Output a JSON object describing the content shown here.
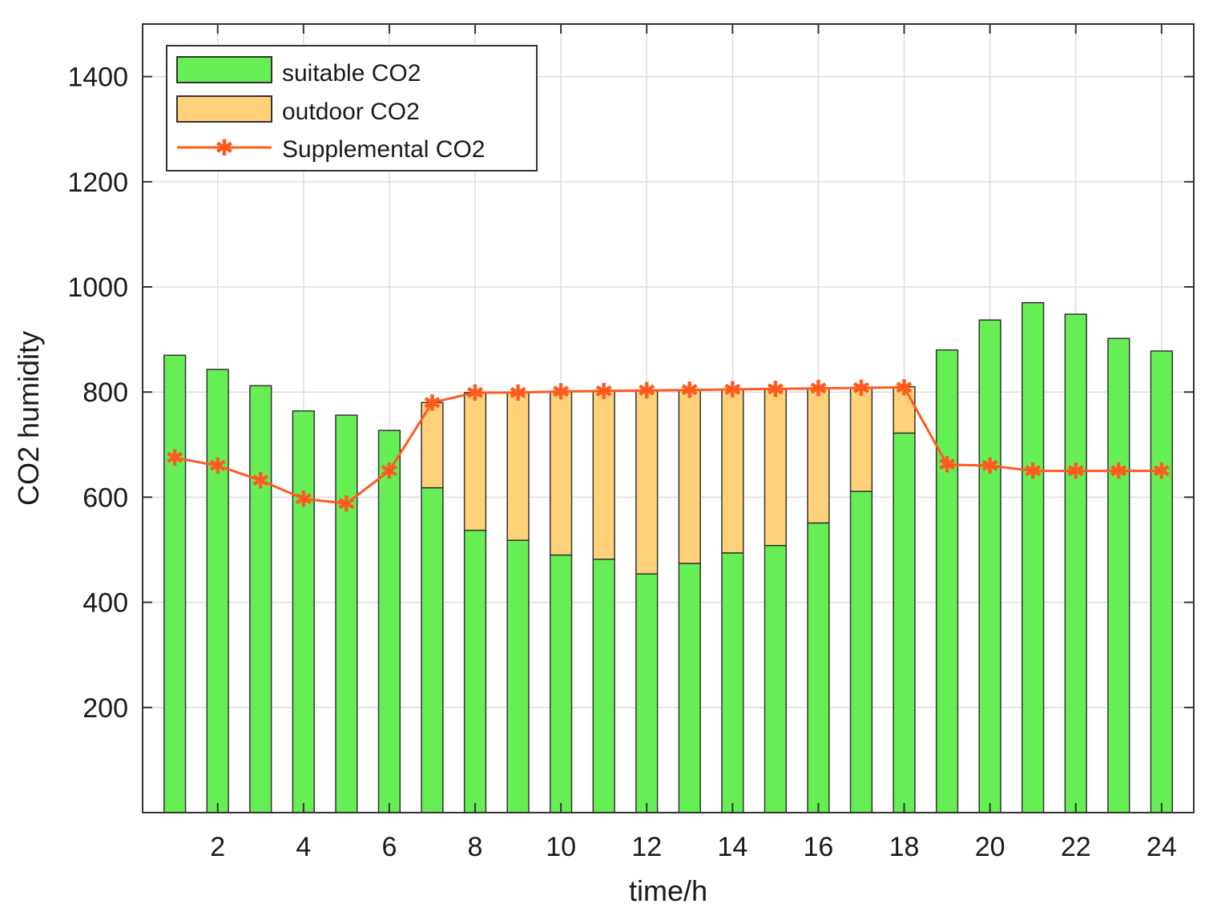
{
  "chart_data": {
    "type": "bar",
    "title": "",
    "xlabel": "time/h",
    "ylabel": "CO2  humidity",
    "x": [
      1,
      2,
      3,
      4,
      5,
      6,
      7,
      8,
      9,
      10,
      11,
      12,
      13,
      14,
      15,
      16,
      17,
      18,
      19,
      20,
      21,
      22,
      23,
      24
    ],
    "xlim": [
      0.25,
      24.75
    ],
    "ylim": [
      0,
      1500
    ],
    "xticks": [
      2,
      4,
      6,
      8,
      10,
      12,
      14,
      16,
      18,
      20,
      22,
      24
    ],
    "yticks": [
      200,
      400,
      600,
      800,
      1000,
      1200,
      1400
    ],
    "grid": true,
    "legend_position": "top-left",
    "series": [
      {
        "name": "suitable CO2",
        "kind": "bar-stacked",
        "color": "#66ee55",
        "values": [
          870,
          843,
          812,
          764,
          756,
          727,
          618,
          537,
          518,
          490,
          482,
          454,
          474,
          494,
          508,
          551,
          611,
          722,
          880,
          937,
          970,
          948,
          902,
          878
        ]
      },
      {
        "name": "outdoor CO2",
        "kind": "bar-stacked",
        "color": "#ffd27a",
        "values": [
          0,
          0,
          0,
          0,
          0,
          0,
          162,
          262,
          282,
          310,
          320,
          348,
          330,
          311,
          297,
          256,
          198,
          88,
          0,
          0,
          0,
          0,
          0,
          0
        ]
      },
      {
        "name": "Supplemental CO2",
        "kind": "line",
        "color": "#ff5a1f",
        "values": [
          675,
          660,
          632,
          597,
          588,
          650,
          780,
          799,
          799,
          801,
          802,
          803,
          804,
          805,
          806,
          807,
          808,
          809,
          662,
          660,
          650,
          650,
          650,
          650
        ]
      }
    ]
  }
}
